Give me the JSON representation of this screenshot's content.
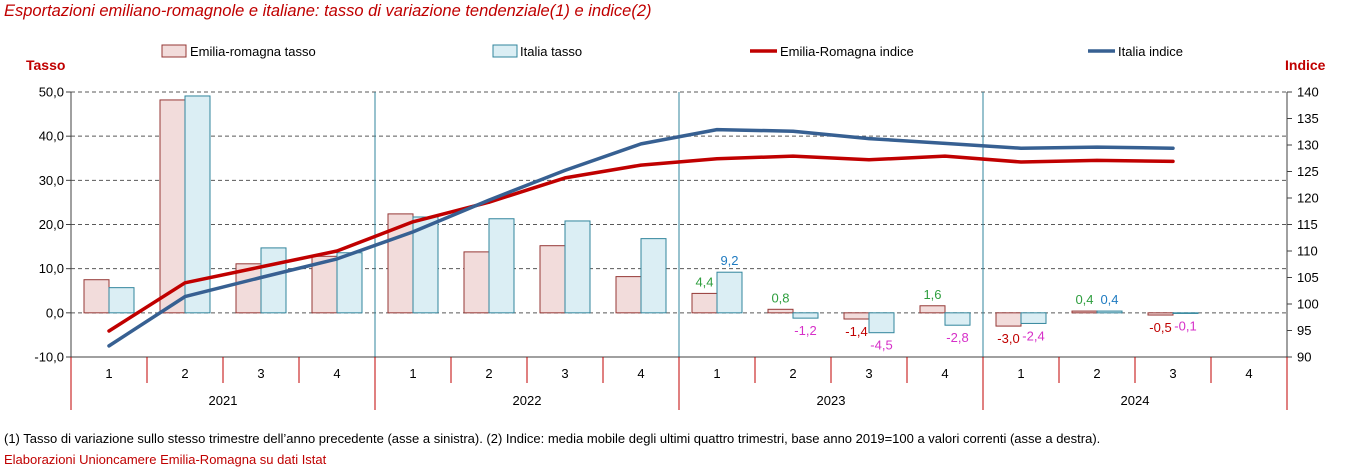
{
  "footnote": "(1) Tasso di variazione sullo stesso trimestre dell’anno precedente (asse a sinistra). (2) Indice: media mobile degli ultimi quattro trimestri, base anno 2019=100 a valori correnti (asse a destra).",
  "source": "Elaborazioni Unioncamere Emilia-Romagna su dati Istat",
  "colors": {
    "title": "#C00000",
    "axis_title": "#C00000",
    "year_separator": "#31859C",
    "category_ticks": "#C00000",
    "source": "#C00000"
  },
  "chart_data": {
    "type": "bar",
    "title": "Esportazioni emiliano-romagnole e italiane: tasso di variazione tendenziale(1) e indice(2)",
    "legend_position": "top",
    "grid": true,
    "left_axis": {
      "label": "Tasso",
      "ylim": [
        -10,
        50
      ],
      "tick_values": [
        50,
        40,
        30,
        20,
        10,
        0,
        -10
      ],
      "tick_labels": [
        "50,0",
        "40,0",
        "30,0",
        "20,0",
        "10,0",
        "0,0",
        "-10,0"
      ]
    },
    "right_axis": {
      "label": "Indice",
      "ylim": [
        90,
        140
      ],
      "tick_values": [
        140,
        135,
        130,
        125,
        120,
        115,
        110,
        105,
        100,
        95,
        90
      ],
      "tick_labels": [
        "140",
        "135",
        "130",
        "125",
        "120",
        "115",
        "110",
        "105",
        "100",
        "95",
        "90"
      ]
    },
    "x": {
      "quarters": [
        "1",
        "2",
        "3",
        "4",
        "1",
        "2",
        "3",
        "4",
        "1",
        "2",
        "3",
        "4",
        "1",
        "2",
        "3",
        "4"
      ],
      "years": [
        "2021",
        "2022",
        "2023",
        "2024"
      ]
    },
    "series": [
      {
        "name": "Emilia-romagna tasso",
        "type": "bar",
        "axis": "left",
        "fill": "#F2DCDB",
        "stroke": "#953735",
        "values": [
          7.5,
          48.2,
          11.1,
          12.8,
          22.4,
          13.8,
          15.2,
          8.2,
          4.4,
          0.8,
          -1.4,
          1.6,
          -3.0,
          0.4,
          -0.5,
          null
        ],
        "labels": [
          null,
          null,
          null,
          null,
          null,
          null,
          null,
          null,
          "4,4",
          "0,8",
          "-1,4",
          "1,6",
          "-3,0",
          "0,4",
          "-0,5",
          null
        ],
        "label_colors": {
          "positive": "#2E9E3E",
          "negative": "#C00000"
        }
      },
      {
        "name": "Italia tasso",
        "type": "bar",
        "axis": "left",
        "fill": "#DBEEF4",
        "stroke": "#31859C",
        "values": [
          5.7,
          49.1,
          14.7,
          13.6,
          21.7,
          21.3,
          20.8,
          16.8,
          9.2,
          -1.2,
          -4.5,
          -2.8,
          -2.4,
          0.4,
          -0.1,
          null
        ],
        "labels": [
          null,
          null,
          null,
          null,
          null,
          null,
          null,
          null,
          "9,2",
          "-1,2",
          "-4,5",
          "-2,8",
          "-2,4",
          "0,4",
          "-0,1",
          null
        ],
        "label_colors": {
          "positive": "#1F7BC1",
          "negative": "#D62FC8"
        }
      },
      {
        "name": "Emilia-Romagna indice",
        "type": "line",
        "axis": "right",
        "color": "#C00000",
        "values": [
          94.9,
          104.0,
          107.0,
          110.0,
          115.5,
          119.2,
          123.8,
          126.2,
          127.4,
          127.9,
          127.2,
          127.9,
          126.8,
          127.1,
          126.9,
          null
        ]
      },
      {
        "name": "Italia indice",
        "type": "line",
        "axis": "right",
        "color": "#376092",
        "values": [
          92.1,
          101.4,
          105.0,
          108.5,
          113.6,
          119.6,
          125.2,
          130.2,
          132.9,
          132.6,
          131.2,
          130.3,
          129.4,
          129.6,
          129.4,
          null
        ]
      }
    ]
  }
}
